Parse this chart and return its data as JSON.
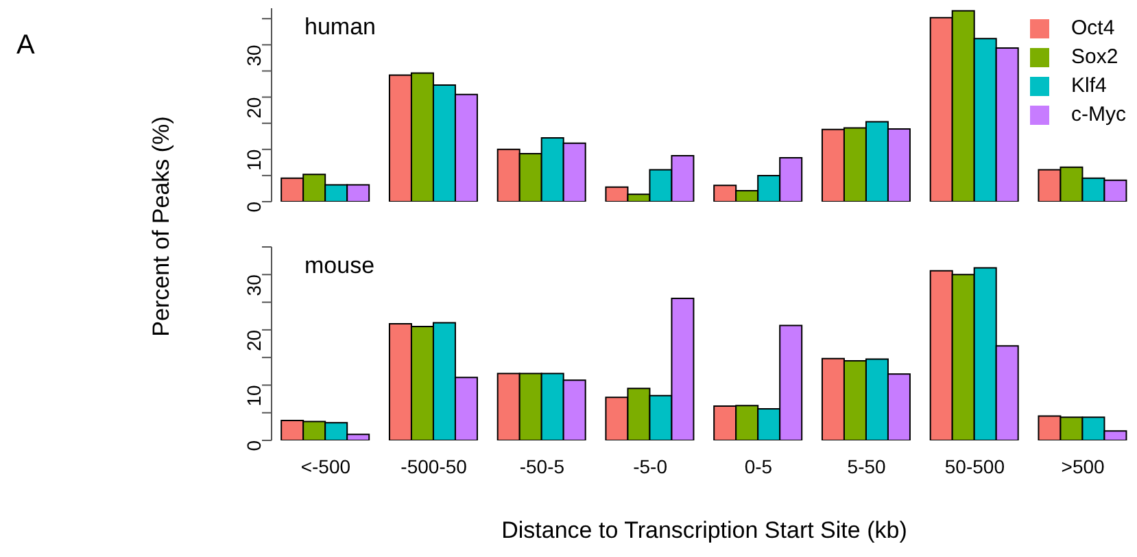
{
  "chart_data": [
    {
      "type": "bar",
      "title": "human",
      "ylabel": "Percent of Peaks (%)",
      "annotations": [
        "A"
      ],
      "categories": [
        null,
        null,
        null,
        null,
        null,
        null,
        null,
        null
      ],
      "series": [
        {
          "name": "Oct4",
          "color": "#f8766d",
          "values": [
            4.5,
            24.2,
            10,
            2.8,
            3.1,
            13.8,
            35.2,
            6.1
          ]
        },
        {
          "name": "Sox2",
          "color": "#7cae00",
          "values": [
            5.2,
            24.6,
            9.2,
            1.4,
            2.1,
            14.1,
            36.5,
            6.6
          ]
        },
        {
          "name": "Klf4",
          "color": "#00bfc4",
          "values": [
            3.2,
            22.3,
            12.2,
            6.1,
            5,
            15.3,
            31.2,
            4.5
          ]
        },
        {
          "name": "c-Myc",
          "color": "#c77cff",
          "values": [
            3.2,
            20.5,
            11.2,
            8.8,
            8.4,
            13.9,
            29.4,
            4.1
          ]
        }
      ],
      "ylim": [
        0,
        37
      ],
      "yticks": [
        0,
        {
          "value": 5,
          "label": null
        },
        10,
        {
          "value": 15,
          "label": null
        },
        20,
        {
          "value": 25,
          "label": null
        },
        30,
        {
          "value": 35,
          "label": null
        }
      ],
      "legend": "top right",
      "tick_labels": "y"
    },
    {
      "type": "bar",
      "title": "mouse",
      "xlabel": "Distance to Transcription Start Site (kb)",
      "categories": [
        "<-500",
        "-500-50",
        "-50-5",
        "-5-0",
        "0-5",
        "5-50",
        "50-500",
        ">500"
      ],
      "series": [
        {
          "color": "#f8766d",
          "values": [
            3.6,
            21.1,
            12.1,
            7.8,
            6.2,
            14.8,
            30.7,
            4.4
          ]
        },
        {
          "color": "#7cae00",
          "values": [
            3.4,
            20.6,
            12.1,
            9.4,
            6.3,
            14.4,
            30,
            4.2
          ]
        },
        {
          "color": "#00bfc4",
          "values": [
            3.2,
            21.3,
            12.1,
            8.1,
            5.7,
            14.7,
            31.2,
            4.2
          ]
        },
        {
          "color": "#c77cff",
          "values": [
            1.1,
            11.4,
            10.9,
            25.7,
            20.8,
            12,
            17.1,
            1.7
          ]
        }
      ],
      "ylim": [
        0,
        35
      ],
      "yticks": [
        0,
        {
          "value": 5,
          "label": null
        },
        10,
        {
          "value": 15,
          "label": null
        },
        20,
        {
          "value": 25,
          "label": null
        },
        30,
        {
          "value": 35,
          "label": null
        }
      ]
    }
  ]
}
